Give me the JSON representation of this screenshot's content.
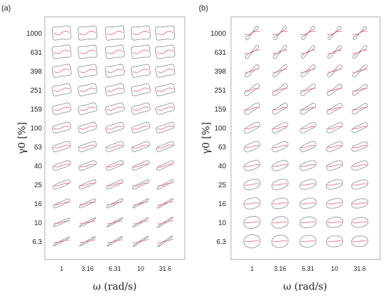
{
  "chart_data": [
    {
      "type": "lissajous-grid",
      "panel_label": "(a)",
      "ylabel": "γ0 [%]",
      "xlabel": "ω (rad/s)",
      "x_tick_labels": [
        "1",
        "3.16",
        "6.31",
        "10",
        "31.6"
      ],
      "y_tick_labels": [
        "1000",
        "631",
        "398",
        "251",
        "159",
        "100",
        "63",
        "40",
        "25",
        "16",
        "10",
        "6.3"
      ],
      "loop_color": "#8a8a8a",
      "curve_color": "#e0607a"
    },
    {
      "type": "lissajous-grid",
      "panel_label": "(b)",
      "ylabel": "γ0 [%]",
      "xlabel": "ω (rad/s)",
      "x_tick_labels": [
        "1",
        "3.16",
        "6.31",
        "10",
        "31.6"
      ],
      "y_tick_labels": [
        "1000",
        "631",
        "398",
        "251",
        "159",
        "100",
        "63",
        "40",
        "25",
        "16",
        "10",
        "6.3"
      ],
      "loop_color": "#8a8a8a",
      "curve_color": "#e0607a"
    }
  ]
}
